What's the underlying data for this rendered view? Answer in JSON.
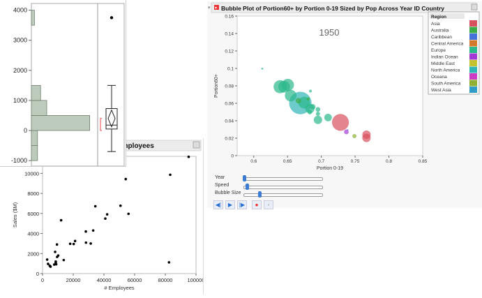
{
  "bubble_window": {
    "title": "Bubble Plot of Portion60+ by Portion 0-19 Sized by Pop Across Year ID Country",
    "year_label": "1950",
    "sliders": [
      {
        "label": "Year",
        "value": 0.0
      },
      {
        "label": "Speed",
        "value": 0.04
      },
      {
        "label": "Bubble Size",
        "value": 0.2
      }
    ],
    "controls": [
      "step-back",
      "play",
      "step-forward",
      "record",
      "save"
    ]
  },
  "scatter_window": {
    "title": "Employees"
  },
  "chart_data": [
    {
      "type": "histogram",
      "orientation": "horizontal",
      "bins": [
        {
          "from": -1000,
          "to": -500,
          "count": 2
        },
        {
          "from": -500,
          "to": 0,
          "count": 2
        },
        {
          "from": 0,
          "to": 500,
          "count": 19
        },
        {
          "from": 500,
          "to": 1000,
          "count": 5
        },
        {
          "from": 1000,
          "to": 1500,
          "count": 3
        },
        {
          "from": 3500,
          "to": 4000,
          "count": 1
        }
      ],
      "bar_color": "#bccbbb",
      "ylim": [
        -1000,
        4200
      ],
      "yticks": [
        -1000,
        0,
        1000,
        2000,
        3000,
        4000
      ],
      "boxplot": {
        "whisker_low": -700,
        "q1": 50,
        "median": 180,
        "q3": 730,
        "whisker_high": 1500,
        "mean": 400,
        "mean_ci": [
          120,
          680
        ],
        "shortest_half": [
          0,
          400
        ],
        "outliers": [
          3750
        ]
      }
    },
    {
      "type": "scatter",
      "xlabel": "# Employees",
      "ylabel": "Sales ($M)",
      "xlim": [
        0,
        100000
      ],
      "ylim": [
        0,
        11700
      ],
      "xticks": [
        0,
        20000,
        40000,
        60000,
        80000,
        100000
      ],
      "yticks": [
        0,
        2000,
        4000,
        6000,
        8000,
        10000
      ],
      "points": [
        [
          3000,
          1400
        ],
        [
          3600,
          970
        ],
        [
          4700,
          780
        ],
        [
          5200,
          690
        ],
        [
          7600,
          900
        ],
        [
          8200,
          2160
        ],
        [
          8600,
          1090
        ],
        [
          8900,
          930
        ],
        [
          8600,
          1200
        ],
        [
          9400,
          2900
        ],
        [
          9500,
          1660
        ],
        [
          10200,
          1800
        ],
        [
          12100,
          5320
        ],
        [
          13800,
          1350
        ],
        [
          18000,
          2970
        ],
        [
          20300,
          2950
        ],
        [
          21200,
          3250
        ],
        [
          28200,
          4200
        ],
        [
          28300,
          3090
        ],
        [
          31400,
          3000
        ],
        [
          33000,
          4300
        ],
        [
          34400,
          6720
        ],
        [
          40900,
          5490
        ],
        [
          42100,
          5910
        ],
        [
          50800,
          6770
        ],
        [
          54200,
          9430
        ],
        [
          56000,
          5960
        ],
        [
          82400,
          1120
        ],
        [
          83200,
          9860
        ],
        [
          95200,
          11650
        ]
      ]
    },
    {
      "type": "bubble",
      "xlabel": "Portion 0-19",
      "ylabel": "Portion60+",
      "xlim": [
        0.5755,
        0.85
      ],
      "ylim": [
        0,
        0.16
      ],
      "xticks": [
        "0.6",
        "0.65",
        "0.7",
        "0.75",
        "0.8",
        "0.85"
      ],
      "yticks": [
        "0",
        "0.02",
        "0.04",
        "0.06",
        "0.08",
        "0.1",
        "0.12",
        "0.14",
        "0.16"
      ],
      "legend_title": "Region",
      "legend_placement": "right",
      "regions": [
        {
          "name": "Asia",
          "color": "#d9505e"
        },
        {
          "name": "Australia",
          "color": "#3cac47"
        },
        {
          "name": "Caribbean",
          "color": "#4472d9"
        },
        {
          "name": "Central America",
          "color": "#d27a2c"
        },
        {
          "name": "Europe",
          "color": "#2bb88a"
        },
        {
          "name": "Indian Ocean",
          "color": "#a43ad6"
        },
        {
          "name": "Middle East",
          "color": "#c4c22f"
        },
        {
          "name": "North America",
          "color": "#2fb5b5"
        },
        {
          "name": "Oceana",
          "color": "#cc3bc4"
        },
        {
          "name": "South America",
          "color": "#8fb032"
        },
        {
          "name": "West Asia",
          "color": "#2f9bc6"
        }
      ],
      "bubbles": [
        {
          "x": 0.6127,
          "y": 0.0997,
          "pop": 1.6,
          "region": "Europe"
        },
        {
          "x": 0.639,
          "y": 0.079,
          "pop": 78,
          "region": "Europe"
        },
        {
          "x": 0.645,
          "y": 0.079,
          "pop": 62,
          "region": "Europe"
        },
        {
          "x": 0.6505,
          "y": 0.081,
          "pop": 68,
          "region": "Europe"
        },
        {
          "x": 0.6547,
          "y": 0.0688,
          "pop": 62,
          "region": "Europe"
        },
        {
          "x": 0.669,
          "y": 0.0603,
          "pop": 230,
          "region": "North America"
        },
        {
          "x": 0.6746,
          "y": 0.0608,
          "pop": 62,
          "region": "Europe"
        },
        {
          "x": 0.666,
          "y": 0.063,
          "pop": 14,
          "region": "Australia"
        },
        {
          "x": 0.6839,
          "y": 0.074,
          "pop": 3.6,
          "region": "Europe"
        },
        {
          "x": 0.6805,
          "y": 0.065,
          "pop": 4.9,
          "region": "Australia"
        },
        {
          "x": 0.683,
          "y": 0.054,
          "pop": 40,
          "region": "Europe"
        },
        {
          "x": 0.6873,
          "y": 0.056,
          "pop": 14,
          "region": "Europe"
        },
        {
          "x": 0.683,
          "y": 0.05,
          "pop": 10,
          "region": "Europe"
        },
        {
          "x": 0.695,
          "y": 0.053,
          "pop": 10,
          "region": "Europe"
        },
        {
          "x": 0.695,
          "y": 0.048,
          "pop": 8,
          "region": "Europe"
        },
        {
          "x": 0.695,
          "y": 0.041,
          "pop": 32,
          "region": "Europe"
        },
        {
          "x": 0.71,
          "y": 0.0437,
          "pop": 26,
          "region": "Europe"
        },
        {
          "x": 0.7283,
          "y": 0.0381,
          "pop": 130,
          "region": "Asia"
        },
        {
          "x": 0.737,
          "y": 0.0272,
          "pop": 10,
          "region": "Indian Ocean"
        },
        {
          "x": 0.739,
          "y": 0.0296,
          "pop": 1,
          "region": "Caribbean"
        },
        {
          "x": 0.749,
          "y": 0.0224,
          "pop": 8,
          "region": "South America"
        },
        {
          "x": 0.7668,
          "y": 0.024,
          "pop": 32,
          "region": "Asia"
        },
        {
          "x": 0.7668,
          "y": 0.0203,
          "pop": 32,
          "region": "Asia"
        }
      ]
    }
  ]
}
